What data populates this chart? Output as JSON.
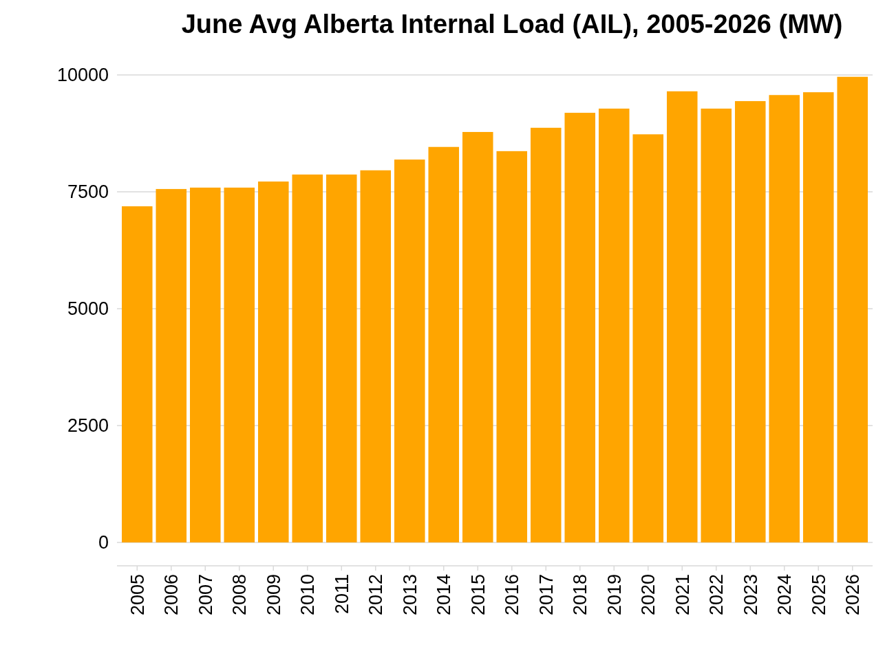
{
  "chart_data": {
    "type": "bar",
    "title": "June Avg Alberta Internal Load (AIL), 2005-2026 (MW)",
    "categories": [
      "2005",
      "2006",
      "2007",
      "2008",
      "2009",
      "2010",
      "2011",
      "2012",
      "2013",
      "2014",
      "2015",
      "2016",
      "2017",
      "2018",
      "2019",
      "2020",
      "2021",
      "2022",
      "2023",
      "2024",
      "2025",
      "2026"
    ],
    "values": [
      7190,
      7560,
      7590,
      7590,
      7720,
      7870,
      7870,
      7960,
      8190,
      8460,
      8780,
      8370,
      8870,
      9190,
      9280,
      8730,
      9650,
      9280,
      9440,
      9570,
      9630,
      9960
    ],
    "color": "#ffa500",
    "ylim": [
      -500,
      10000
    ],
    "yticks": [
      0,
      2500,
      5000,
      7500,
      10000
    ],
    "grid": "y"
  }
}
